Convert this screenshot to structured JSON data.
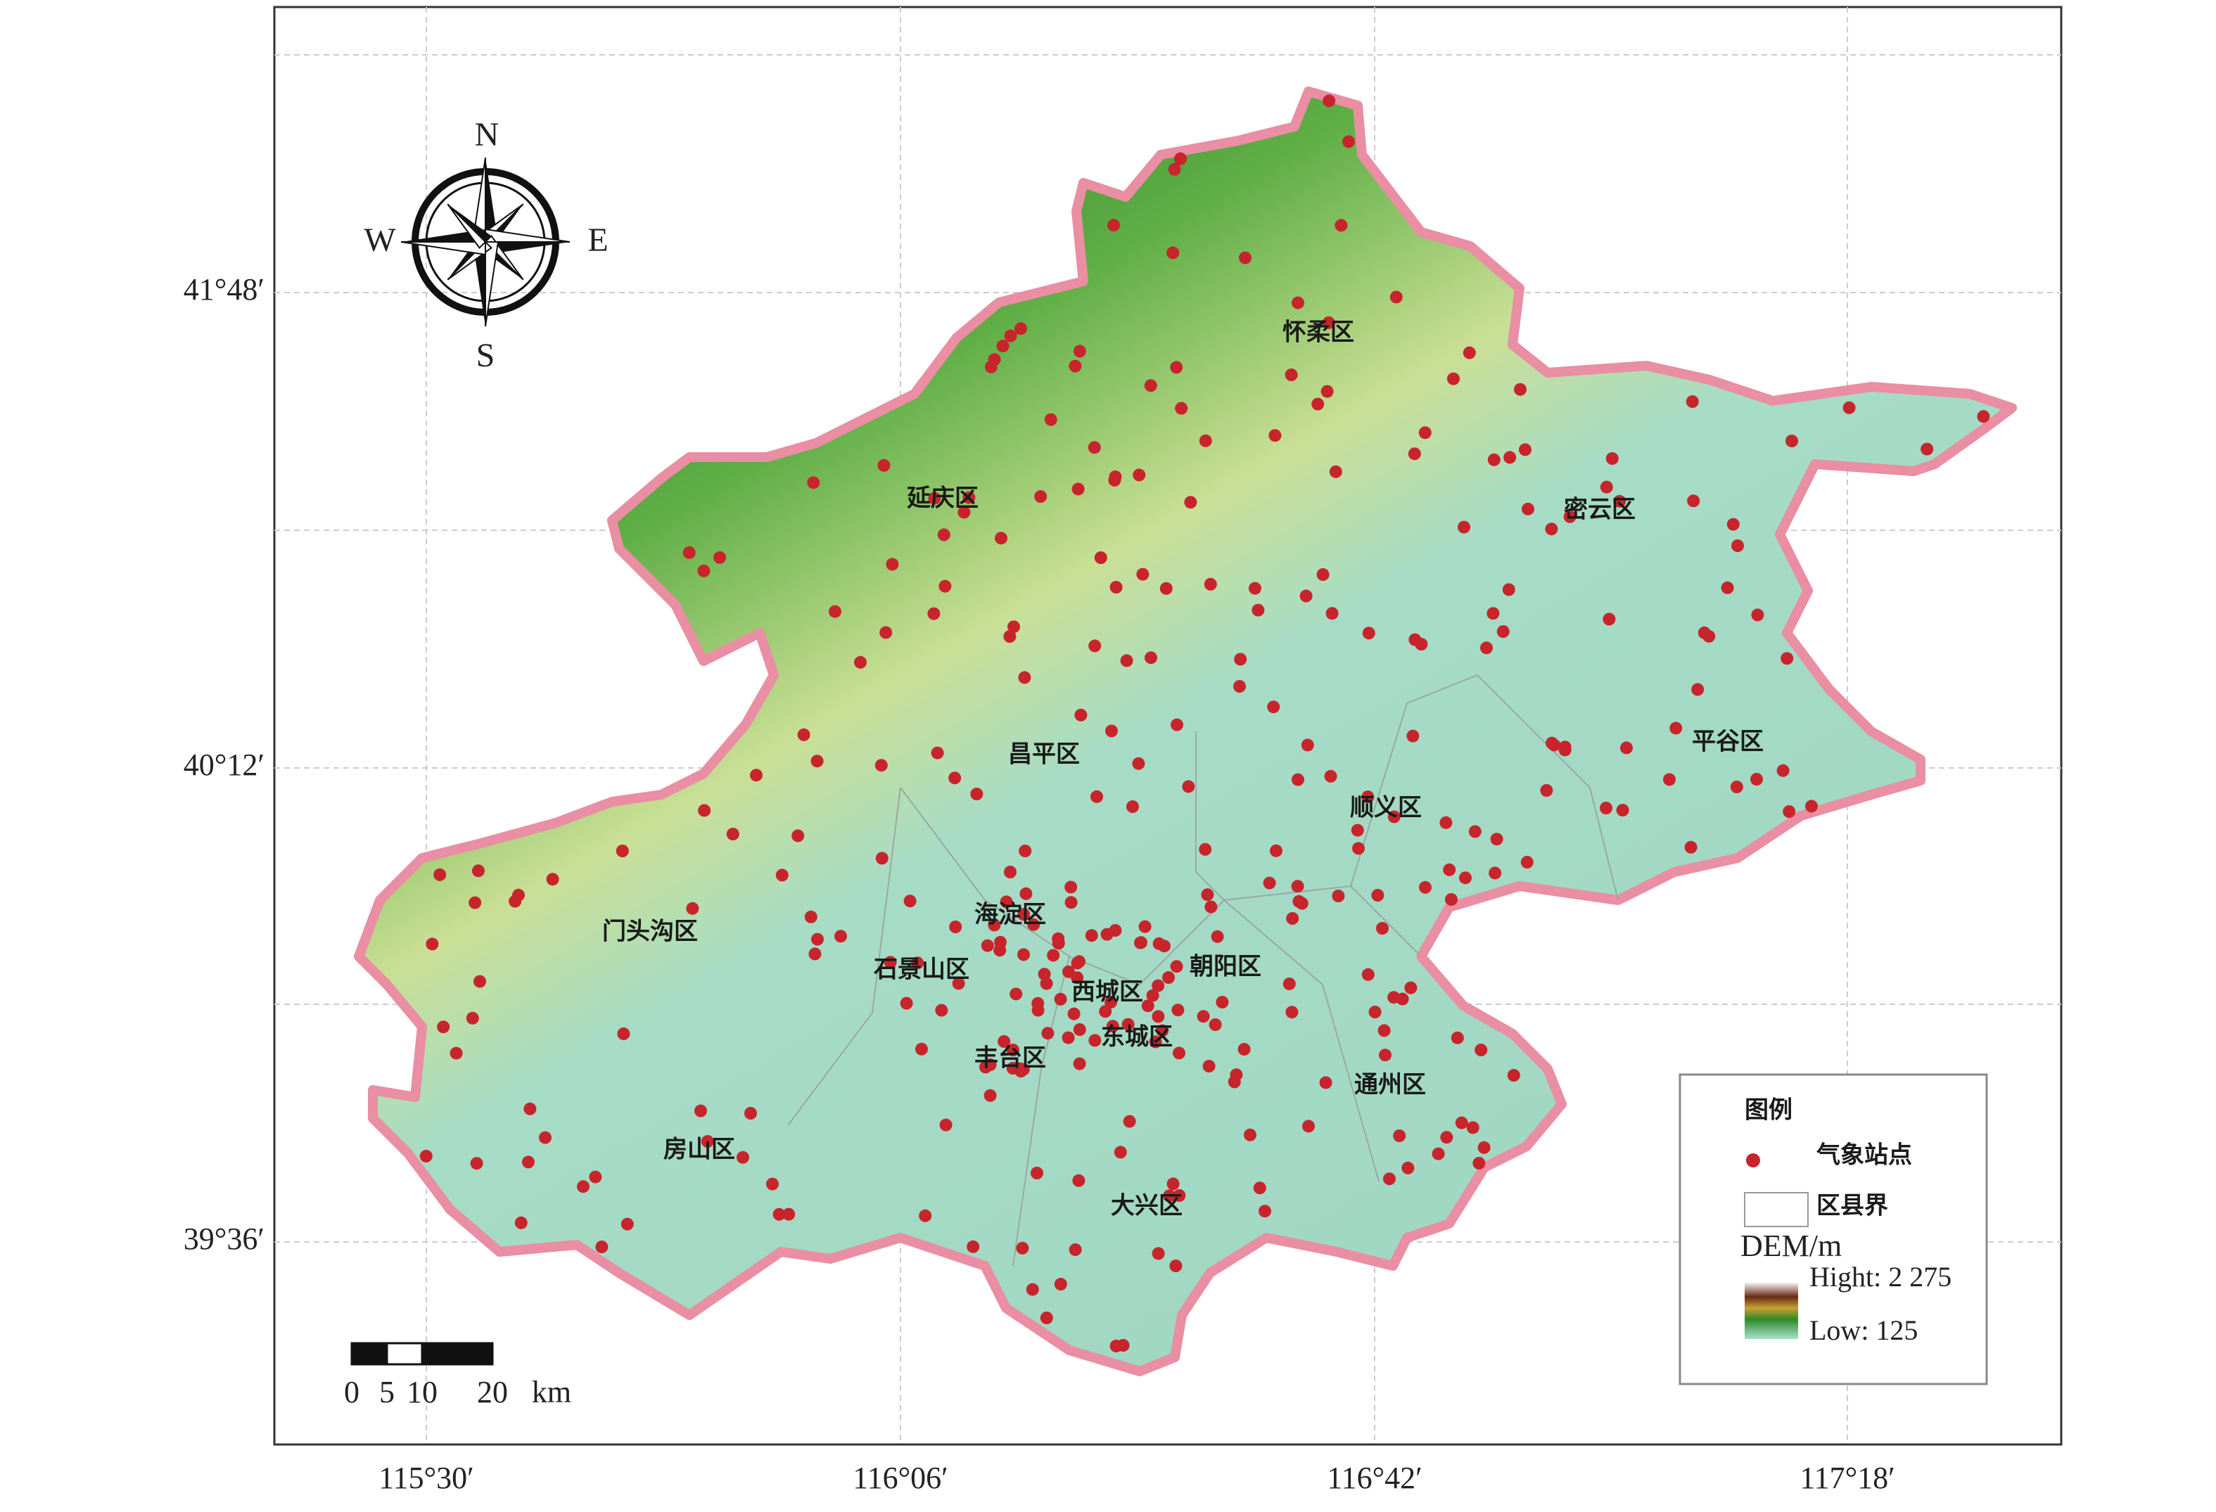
{
  "map": {
    "lat_labels": [
      "41°48′",
      "40°12′",
      "39°36′"
    ],
    "lon_labels": [
      "115°30′",
      "116°06′",
      "116°42′",
      "117°18′"
    ],
    "compass": {
      "north": "N",
      "south": "S",
      "west": "W",
      "east": "E"
    },
    "districts": [
      "怀柔区",
      "密云区",
      "延庆区",
      "昌平区",
      "平谷区",
      "顺义区",
      "海淀区",
      "门头沟区",
      "石景山区",
      "朝阳区",
      "西城区",
      "东城区",
      "丰台区",
      "通州区",
      "房山区",
      "大兴区"
    ],
    "legend": {
      "title": "图例",
      "stations": "气象站点",
      "boundary": "区县界",
      "dem_title": "DEM/m",
      "high": "Hight: 2 275",
      "low": "Low: 125"
    },
    "scale_bar": {
      "ticks": [
        0,
        5,
        10,
        20
      ],
      "unit": "km"
    }
  }
}
